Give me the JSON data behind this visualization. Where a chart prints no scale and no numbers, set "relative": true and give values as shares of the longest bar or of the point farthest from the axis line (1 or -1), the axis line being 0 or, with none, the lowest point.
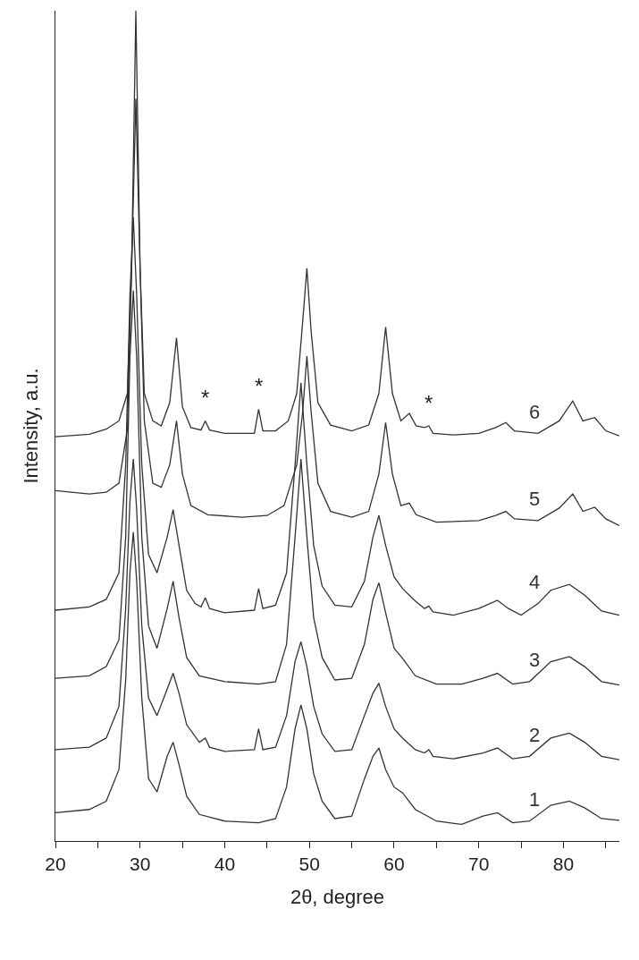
{
  "chart_data": {
    "type": "line",
    "relative": true,
    "xlabel": "2θ, degree",
    "ylabel": "Intensity, a.u.",
    "xlim": [
      20,
      86.6
    ],
    "xticks": [
      20,
      {
        "value": 25,
        "label": null
      },
      30,
      {
        "value": 35,
        "label": null
      },
      40,
      {
        "value": 45,
        "label": null
      },
      50,
      {
        "value": 55,
        "label": null
      },
      60,
      {
        "value": 65,
        "label": null
      },
      70,
      {
        "value": 75,
        "label": null
      },
      80,
      {
        "value": 85,
        "label": null
      }
    ],
    "line_style": "solid",
    "series": [
      {
        "name": "1",
        "color": "#333333",
        "x": [
          20,
          24,
          26,
          27.5,
          28.3,
          28.8,
          29.2,
          29.6,
          30.2,
          31,
          32,
          33.2,
          33.9,
          34.6,
          35.5,
          37,
          40,
          44,
          46,
          47.3,
          48.3,
          49.0,
          49.7,
          50.5,
          51.5,
          53,
          55,
          56.5,
          57.5,
          58.2,
          59,
          60,
          61,
          62.5,
          65,
          68,
          70.5,
          72.2,
          74,
          76,
          78.5,
          80.7,
          82.5,
          84.5,
          86.6
        ],
        "values": [
          0.034,
          0.038,
          0.048,
          0.086,
          0.194,
          0.323,
          0.372,
          0.313,
          0.172,
          0.075,
          0.059,
          0.102,
          0.119,
          0.092,
          0.054,
          0.032,
          0.024,
          0.022,
          0.027,
          0.065,
          0.135,
          0.164,
          0.135,
          0.081,
          0.048,
          0.027,
          0.03,
          0.075,
          0.102,
          0.112,
          0.086,
          0.065,
          0.058,
          0.038,
          0.024,
          0.02,
          0.03,
          0.034,
          0.022,
          0.024,
          0.043,
          0.048,
          0.04,
          0.027,
          0.025
        ]
      },
      {
        "name": "2",
        "color": "#333333",
        "x": [
          20,
          24,
          26,
          27.5,
          28.3,
          28.8,
          29.2,
          29.6,
          30.2,
          31,
          32,
          33.2,
          33.9,
          34.6,
          35.5,
          37,
          37.7,
          38.2,
          40,
          43.5,
          44.0,
          44.5,
          46,
          47.3,
          48.3,
          49.0,
          49.7,
          50.5,
          51.5,
          53,
          55,
          56.5,
          57.5,
          58.2,
          59,
          60,
          61,
          62.5,
          63.6,
          64.1,
          64.6,
          67,
          70.5,
          72.2,
          74,
          76,
          78.5,
          80.7,
          82.5,
          84.5,
          86.6
        ],
        "values": [
          0.11,
          0.113,
          0.124,
          0.162,
          0.28,
          0.409,
          0.46,
          0.399,
          0.259,
          0.172,
          0.151,
          0.183,
          0.202,
          0.178,
          0.14,
          0.119,
          0.124,
          0.113,
          0.108,
          0.11,
          0.135,
          0.11,
          0.113,
          0.151,
          0.216,
          0.24,
          0.21,
          0.162,
          0.129,
          0.108,
          0.11,
          0.151,
          0.178,
          0.19,
          0.162,
          0.135,
          0.124,
          0.11,
          0.106,
          0.11,
          0.102,
          0.099,
          0.106,
          0.112,
          0.099,
          0.102,
          0.124,
          0.13,
          0.119,
          0.102,
          0.098
        ]
      },
      {
        "name": "3",
        "color": "#333333",
        "x": [
          20,
          24,
          26,
          27.5,
          28.3,
          28.8,
          29.2,
          29.6,
          30.2,
          31,
          32,
          33.2,
          33.9,
          34.6,
          35.5,
          37,
          40,
          44,
          46,
          47.3,
          48.3,
          49.0,
          49.7,
          50.5,
          51.5,
          53,
          55,
          56.5,
          57.5,
          58.2,
          59,
          60,
          61,
          62.5,
          65,
          68,
          70.5,
          72.2,
          74,
          76,
          78.5,
          80.7,
          82.5,
          84.5,
          86.6
        ],
        "values": [
          0.196,
          0.199,
          0.21,
          0.242,
          0.366,
          0.582,
          0.663,
          0.582,
          0.366,
          0.259,
          0.232,
          0.28,
          0.313,
          0.269,
          0.221,
          0.199,
          0.192,
          0.189,
          0.192,
          0.237,
          0.366,
          0.46,
          0.366,
          0.269,
          0.221,
          0.194,
          0.196,
          0.237,
          0.291,
          0.311,
          0.275,
          0.232,
          0.22,
          0.199,
          0.189,
          0.189,
          0.196,
          0.202,
          0.189,
          0.192,
          0.216,
          0.222,
          0.21,
          0.192,
          0.188
        ]
      },
      {
        "name": "4",
        "color": "#333333",
        "x": [
          20,
          24,
          26,
          27.5,
          28.3,
          28.8,
          29.2,
          29.6,
          30.2,
          31,
          32,
          33.2,
          33.9,
          34.6,
          35.5,
          36.5,
          37.2,
          37.7,
          38.2,
          40,
          43.5,
          44.0,
          44.5,
          46,
          47.3,
          48.3,
          49.0,
          49.7,
          50.5,
          51.5,
          53,
          55,
          56.5,
          57.5,
          58.2,
          59,
          60,
          61,
          62.5,
          63.6,
          64.1,
          64.6,
          67,
          70,
          72.2,
          73.5,
          75,
          77,
          78.5,
          80.7,
          82.5,
          84.5,
          86.6
        ],
        "values": [
          0.278,
          0.282,
          0.291,
          0.323,
          0.453,
          0.657,
          0.751,
          0.657,
          0.453,
          0.345,
          0.323,
          0.366,
          0.399,
          0.356,
          0.302,
          0.286,
          0.282,
          0.293,
          0.28,
          0.275,
          0.278,
          0.304,
          0.28,
          0.284,
          0.323,
          0.453,
          0.552,
          0.453,
          0.356,
          0.307,
          0.284,
          0.282,
          0.313,
          0.366,
          0.392,
          0.356,
          0.318,
          0.304,
          0.289,
          0.28,
          0.283,
          0.276,
          0.272,
          0.28,
          0.29,
          0.28,
          0.272,
          0.286,
          0.302,
          0.309,
          0.296,
          0.277,
          0.272
        ]
      },
      {
        "name": "5",
        "color": "#333333",
        "x": [
          20,
          24,
          26,
          27.5,
          28.5,
          29.0,
          29.5,
          30.0,
          30.5,
          31.5,
          32.5,
          33.5,
          34.3,
          35.0,
          36,
          38,
          42,
          45,
          47,
          48.5,
          49.2,
          49.7,
          50.2,
          51,
          52.5,
          55,
          57,
          58.2,
          59.0,
          59.8,
          60.8,
          61.8,
          62.6,
          65,
          70,
          72,
          73.2,
          74.2,
          77,
          79.5,
          81.1,
          82.3,
          83.7,
          85,
          86.6
        ],
        "values": [
          0.422,
          0.418,
          0.42,
          0.431,
          0.496,
          0.69,
          0.894,
          0.69,
          0.506,
          0.431,
          0.426,
          0.453,
          0.506,
          0.442,
          0.404,
          0.393,
          0.39,
          0.392,
          0.404,
          0.453,
          0.517,
          0.584,
          0.517,
          0.431,
          0.397,
          0.39,
          0.397,
          0.442,
          0.504,
          0.442,
          0.404,
          0.407,
          0.393,
          0.384,
          0.386,
          0.392,
          0.397,
          0.388,
          0.386,
          0.401,
          0.418,
          0.397,
          0.402,
          0.388,
          0.38
        ]
      },
      {
        "name": "6",
        "color": "#333333",
        "x": [
          20,
          24,
          26,
          27.5,
          28.5,
          29.0,
          29.5,
          30.0,
          30.5,
          31.5,
          32.5,
          33.5,
          34.3,
          35.0,
          36,
          37.2,
          37.7,
          38.2,
          40,
          43.5,
          44.0,
          44.5,
          46,
          47.5,
          48.5,
          49.2,
          49.7,
          50.2,
          51,
          52.5,
          55,
          57,
          58.2,
          59.0,
          59.8,
          60.8,
          61.8,
          62.6,
          63.6,
          64.1,
          64.6,
          67,
          70,
          72,
          73.2,
          74.2,
          77,
          79.5,
          81.1,
          82.3,
          83.7,
          85,
          86.6
        ],
        "values": [
          0.487,
          0.49,
          0.496,
          0.506,
          0.539,
          0.69,
          1.0,
          0.69,
          0.539,
          0.506,
          0.5,
          0.528,
          0.606,
          0.523,
          0.498,
          0.495,
          0.506,
          0.495,
          0.491,
          0.491,
          0.52,
          0.494,
          0.494,
          0.506,
          0.539,
          0.625,
          0.69,
          0.614,
          0.528,
          0.501,
          0.494,
          0.501,
          0.539,
          0.619,
          0.539,
          0.506,
          0.515,
          0.5,
          0.498,
          0.5,
          0.491,
          0.489,
          0.491,
          0.498,
          0.504,
          0.494,
          0.491,
          0.506,
          0.53,
          0.506,
          0.51,
          0.494,
          0.488
        ]
      }
    ],
    "annotations": [
      {
        "text": "*",
        "x": 37.7,
        "y": 0.506
      },
      {
        "text": "*",
        "x": 44.0,
        "y": 0.52
      },
      {
        "text": "*",
        "x": 64.1,
        "y": 0.5
      }
    ]
  }
}
